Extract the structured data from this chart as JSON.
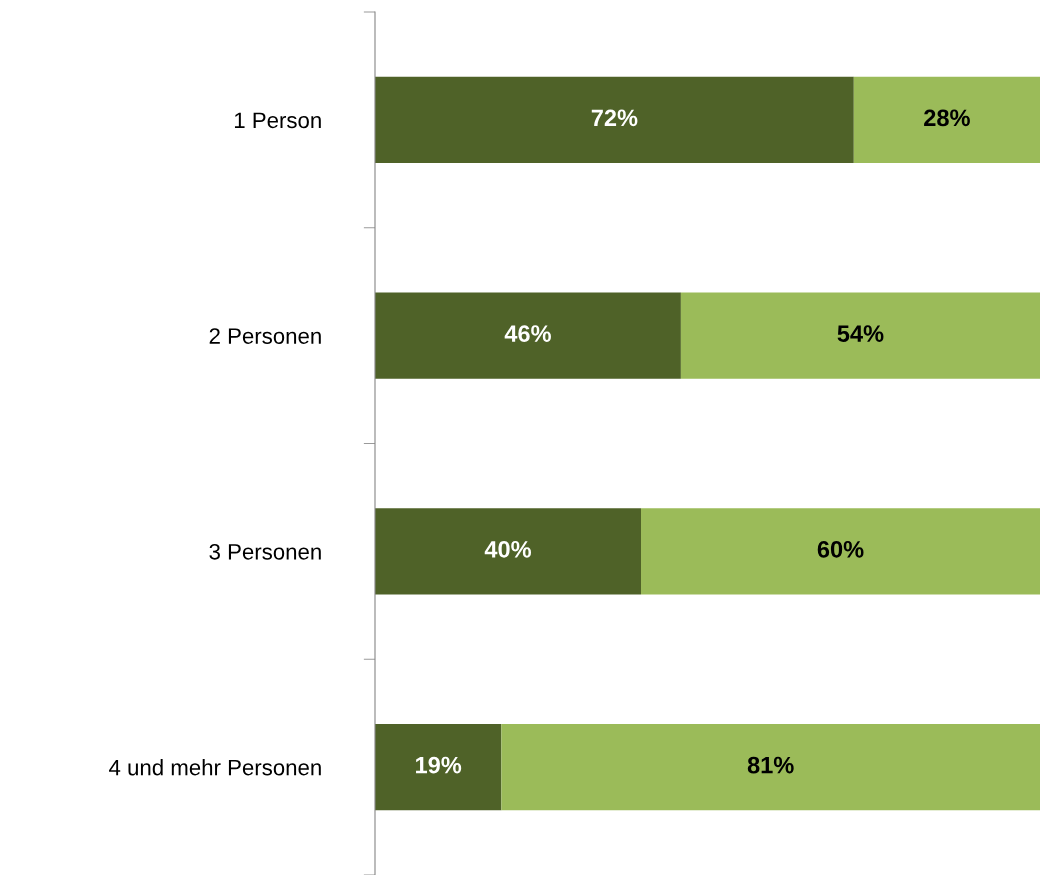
{
  "chart_data": {
    "type": "bar",
    "orientation": "horizontal",
    "stacked": true,
    "categories": [
      "1 Person",
      "2 Personen",
      "3 Personen",
      "4 und mehr Personen"
    ],
    "series": [
      {
        "color": "#4f6228",
        "values": [
          72,
          46,
          40,
          19
        ],
        "value_labels": [
          "72%",
          "46%",
          "40%",
          "19%"
        ]
      },
      {
        "color": "#9bbb59",
        "values": [
          28,
          54,
          60,
          81
        ],
        "value_labels": [
          "28%",
          "54%",
          "60%",
          "81%"
        ]
      }
    ],
    "xlim": [
      0,
      100
    ],
    "tick_labels": "y",
    "grid": false,
    "legend": false
  }
}
